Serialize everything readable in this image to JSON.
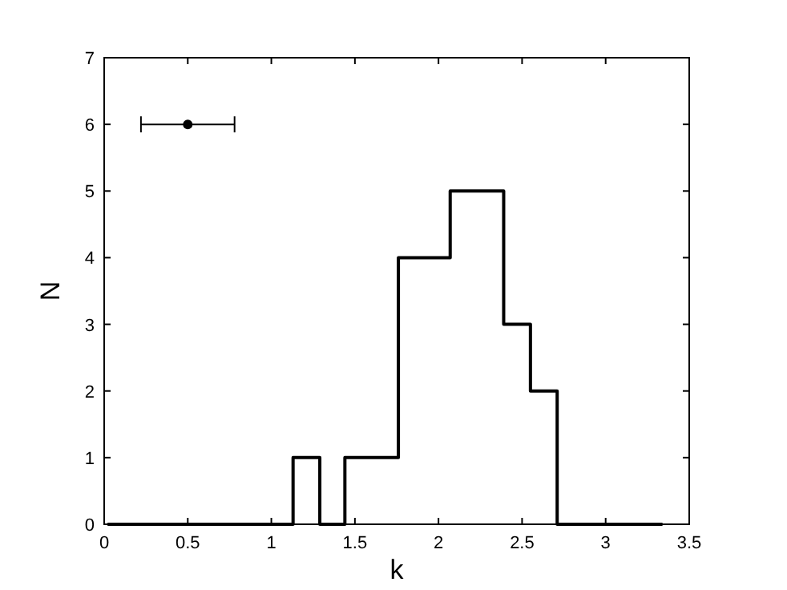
{
  "chart_data": {
    "type": "histogram",
    "xlabel": "k",
    "ylabel": "N",
    "bins": [
      0.02,
      0.18,
      0.34,
      0.49,
      0.65,
      0.81,
      0.97,
      1.13,
      1.29,
      1.44,
      1.6,
      1.76,
      1.92,
      2.07,
      2.23,
      2.39,
      2.55,
      2.71,
      2.86,
      3.02,
      3.18,
      3.34
    ],
    "series": [
      {
        "color": "#000000",
        "values": [
          0,
          0,
          0,
          0,
          0,
          0,
          0,
          1,
          0,
          1,
          1,
          4,
          4,
          5,
          5,
          3,
          2,
          0,
          0,
          0,
          0
        ]
      },
      {
        "type": "scatter",
        "color": "#000000",
        "x": [
          0.5
        ],
        "values": [
          6
        ],
        "xerrors": [
          0.28
        ],
        "marker": "circle"
      }
    ],
    "xlim": [
      0,
      3.5
    ],
    "ylim": [
      0,
      7
    ],
    "xticks": [
      0,
      0.5,
      1,
      1.5,
      2,
      2.5,
      3,
      3.5
    ],
    "yticks": [
      0,
      1,
      2,
      3,
      4,
      5,
      6,
      7
    ],
    "grid": false
  }
}
